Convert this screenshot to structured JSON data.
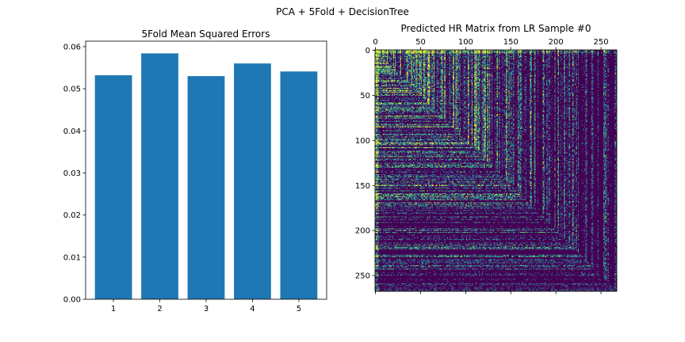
{
  "figure": {
    "suptitle": "PCA + 5Fold + DecisionTree"
  },
  "chart_data": [
    {
      "type": "bar",
      "title": "5Fold Mean Squared Errors",
      "xlabel": "",
      "ylabel": "",
      "categories": [
        "1",
        "2",
        "3",
        "4",
        "5"
      ],
      "values": [
        0.0532,
        0.0584,
        0.053,
        0.056,
        0.0541
      ],
      "ylim": [
        0,
        0.0613
      ],
      "yticks": [
        0.0,
        0.01,
        0.02,
        0.03,
        0.04,
        0.05,
        0.06
      ],
      "ytick_labels": [
        "0.00",
        "0.01",
        "0.02",
        "0.03",
        "0.04",
        "0.05",
        "0.06"
      ],
      "bar_color": "#1f77b4",
      "grid": false
    },
    {
      "type": "heatmap",
      "title": "Predicted HR Matrix from LR Sample #0",
      "rows": 268,
      "cols": 268,
      "colormap": "viridis",
      "xticks": [
        0,
        50,
        100,
        150,
        200,
        250
      ],
      "yticks": [
        0,
        50,
        100,
        150,
        200,
        250
      ],
      "xtick_labels": [
        "0",
        "50",
        "100",
        "150",
        "200",
        "250"
      ],
      "ytick_labels": [
        "0",
        "50",
        "100",
        "150",
        "200",
        "250"
      ],
      "xaxis_position": "top",
      "colors": [
        "#440154",
        "#3b528b",
        "#21918c",
        "#5ec962",
        "#fde725"
      ],
      "grid": false
    }
  ]
}
